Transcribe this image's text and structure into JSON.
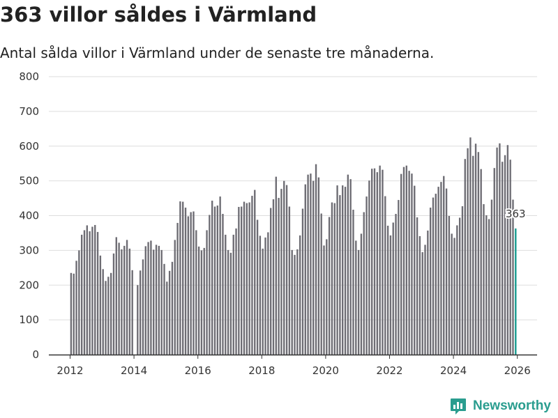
{
  "title": "363 villor såldes i Värmland",
  "subtitle": "Antal sålda villor i Värmland under de senaste tre månaderna.",
  "brand": {
    "name": "Newsworthy",
    "icon": "newsworthy-logo-icon",
    "color": "#2a9d8f"
  },
  "colors": {
    "bar": "#6d6c73",
    "highlight": "#179b8f",
    "grid": "#dddddd",
    "axis": "#333333"
  },
  "chart_data": {
    "type": "bar",
    "title": "363 villor såldes i Värmland",
    "xlabel": "",
    "ylabel": "",
    "ylim": [
      0,
      800
    ],
    "yticks": [
      0,
      100,
      200,
      300,
      400,
      500,
      600,
      700,
      800
    ],
    "xticks": [
      "2012",
      "2014",
      "2016",
      "2018",
      "2020",
      "2022",
      "2024",
      "2026"
    ],
    "start": "2012-01",
    "values": [
      235,
      233,
      270,
      300,
      345,
      358,
      372,
      355,
      368,
      373,
      353,
      285,
      246,
      212,
      224,
      235,
      291,
      338,
      322,
      303,
      313,
      330,
      305,
      243,
      0,
      200,
      242,
      274,
      312,
      324,
      328,
      302,
      316,
      313,
      301,
      261,
      210,
      241,
      267,
      330,
      379,
      441,
      440,
      423,
      398,
      410,
      412,
      358,
      311,
      300,
      307,
      358,
      402,
      443,
      426,
      429,
      455,
      405,
      345,
      301,
      293,
      345,
      363,
      425,
      426,
      440,
      436,
      438,
      457,
      474,
      388,
      342,
      305,
      337,
      352,
      422,
      447,
      512,
      451,
      477,
      500,
      488,
      426,
      301,
      287,
      303,
      343,
      420,
      490,
      518,
      521,
      500,
      548,
      510,
      406,
      314,
      332,
      396,
      438,
      436,
      487,
      459,
      487,
      483,
      518,
      505,
      417,
      328,
      301,
      348,
      410,
      455,
      501,
      535,
      536,
      525,
      544,
      532,
      456,
      371,
      343,
      380,
      405,
      445,
      520,
      540,
      544,
      529,
      521,
      486,
      395,
      341,
      295,
      316,
      357,
      423,
      452,
      463,
      483,
      497,
      514,
      478,
      399,
      348,
      336,
      372,
      394,
      427,
      563,
      594,
      625,
      572,
      607,
      583,
      534,
      433,
      401,
      390,
      446,
      537,
      596,
      608,
      555,
      574,
      603,
      561,
      446,
      363
    ],
    "highlight_last": true,
    "annotation": "363"
  }
}
